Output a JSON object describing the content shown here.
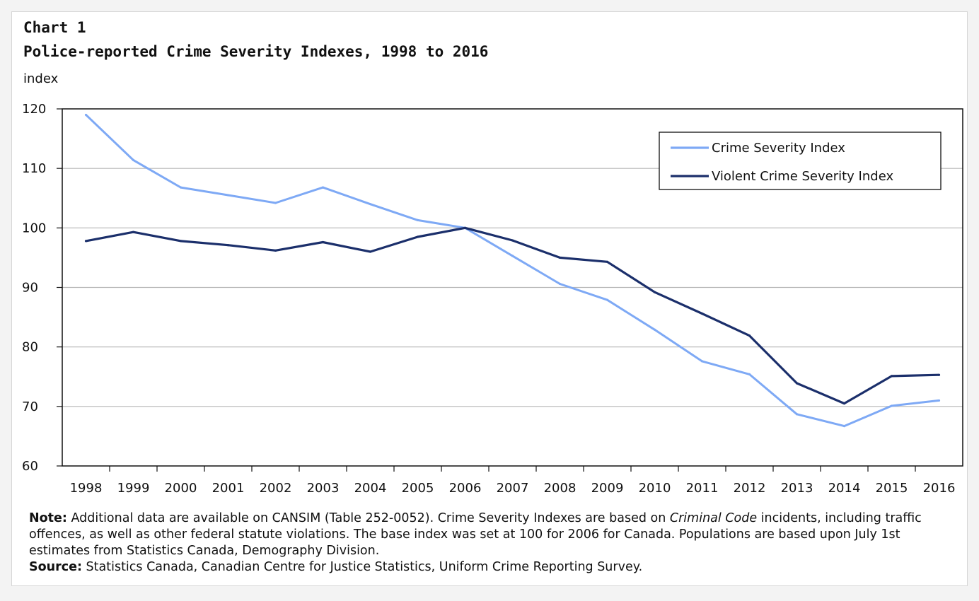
{
  "chart_label": "Chart 1",
  "title": "Police-reported  Crime Severity Indexes, 1998 to 2016",
  "y_unit": "index",
  "chart_data": {
    "type": "line",
    "x": [
      "1998",
      "1999",
      "2000",
      "2001",
      "2002",
      "2003",
      "2004",
      "2005",
      "2006",
      "2007",
      "2008",
      "2009",
      "2010",
      "2011",
      "2012",
      "2013",
      "2014",
      "2015",
      "2016"
    ],
    "series": [
      {
        "name": "Crime Severity Index",
        "color": "#7ea9f5",
        "values": [
          119,
          111.4,
          106.8,
          105.5,
          104.2,
          106.8,
          104.0,
          101.3,
          100,
          95.3,
          90.6,
          87.9,
          82.9,
          77.6,
          75.4,
          68.7,
          66.7,
          70.1,
          71.0
        ]
      },
      {
        "name": "Violent Crime Severity Index",
        "color": "#1b2f6b",
        "values": [
          97.8,
          99.3,
          97.8,
          97.1,
          96.2,
          97.6,
          96.0,
          98.5,
          100,
          97.9,
          95.0,
          94.3,
          89.2,
          85.6,
          81.9,
          73.9,
          70.5,
          75.1,
          75.3
        ]
      }
    ],
    "ylim": [
      60,
      120
    ],
    "yticks": [
      60,
      70,
      80,
      90,
      100,
      110,
      120
    ],
    "grid": true,
    "legend": "top-right"
  },
  "notes": {
    "note_label": "Note:",
    "note_text_1": " Additional data are available on CANSIM (Table 252-0052). Crime Severity Indexes are based on ",
    "note_italic": "Criminal Code",
    "note_text_2": " incidents, including traffic offences, as well as other federal statute violations. The base index was set at 100 for 2006 for Canada. Populations are based upon July 1st estimates from Statistics Canada, Demography Division.",
    "source_label": "Source:",
    "source_text": " Statistics Canada, Canadian Centre for Justice Statistics, Uniform Crime Reporting Survey."
  }
}
